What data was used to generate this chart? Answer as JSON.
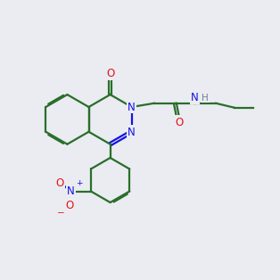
{
  "bg": "#eaecf2",
  "bc": "#2a6e2a",
  "nc": "#1414e0",
  "oc": "#e01414",
  "hc": "#708090",
  "lw": 1.6,
  "dbo": 0.018,
  "fs": 8.5,
  "fs_small": 7.5
}
